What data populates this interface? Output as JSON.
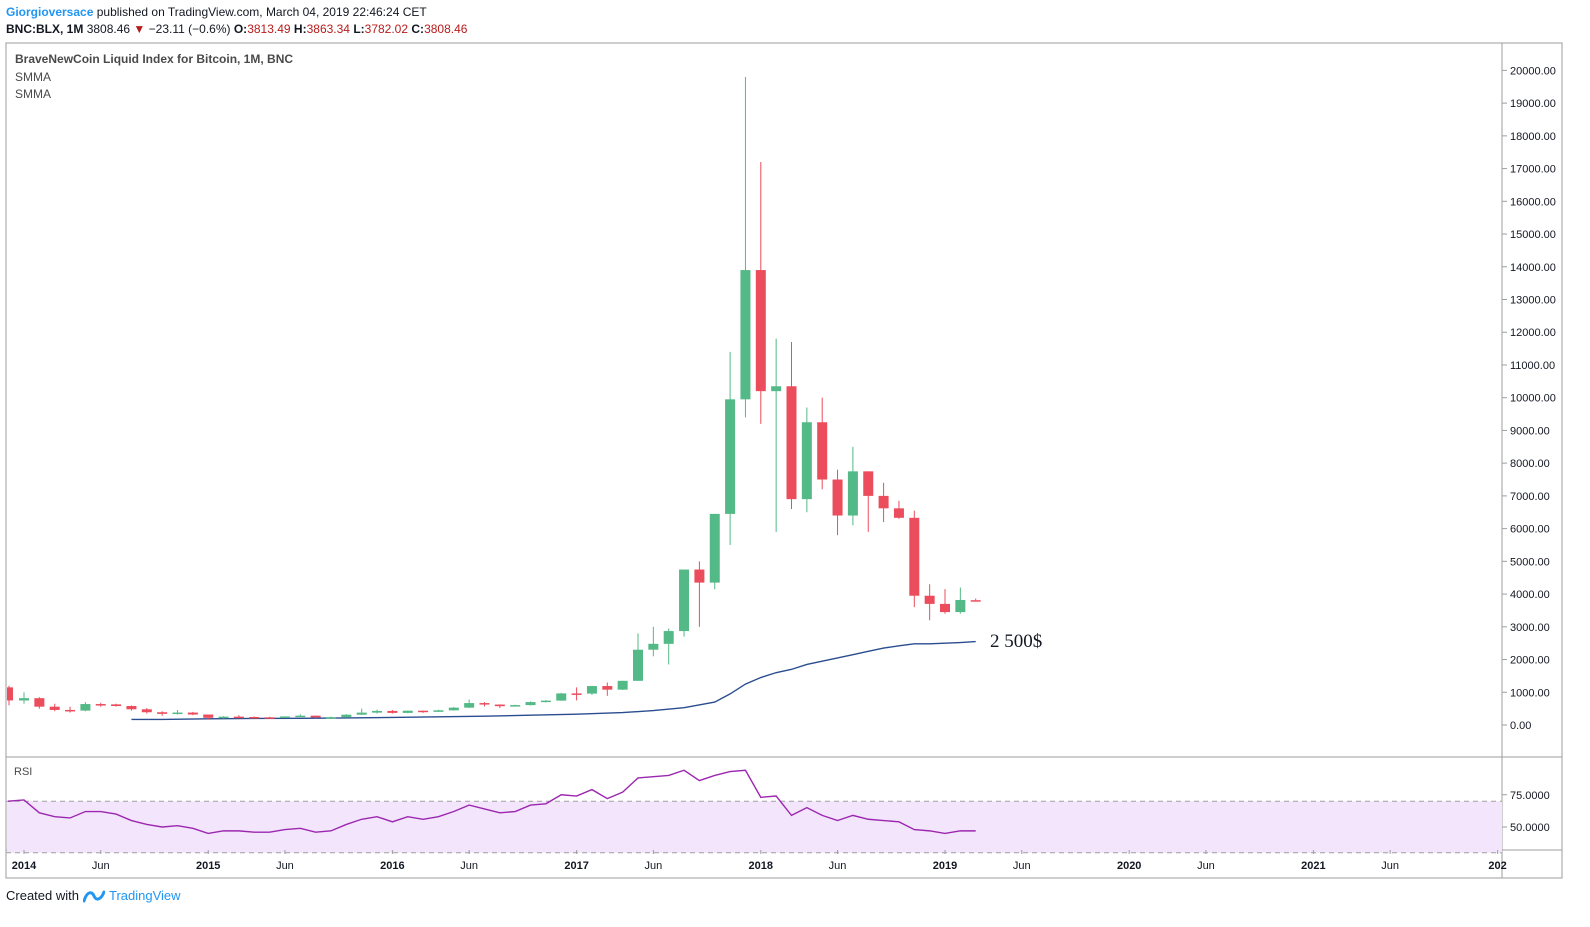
{
  "header": {
    "author": "Giorgioversace",
    "published": "published on TradingView.com, March 04, 2019 22:46:24 CET",
    "symbol": "BNC:BLX, 1M",
    "last": "3808.46",
    "change": "−23.11 (−0.6%)",
    "o_label": "O:",
    "o_value": "3813.49",
    "h_label": "H:",
    "h_value": "3863.34",
    "l_label": "L:",
    "l_value": "3782.02",
    "c_label": "C:",
    "c_value": "3808.46"
  },
  "legend": {
    "title": "BraveNewCoin Liquid Index for Bitcoin, 1M, BNC",
    "ind1": "SMMA",
    "ind2": "SMMA",
    "rsi": "RSI"
  },
  "annotation": "2 500$",
  "footer": {
    "created": "Created with",
    "brand": "TradingView"
  },
  "colors": {
    "up": "#53b987",
    "down": "#eb4d5c",
    "smma": "#2a4d8f",
    "rsi": "#9c27b0",
    "rsi_band": "#f3e5fc",
    "author": "#2196f3"
  },
  "chart_data": [
    {
      "type": "candlestick",
      "interval": "1M",
      "ylim": [
        -1000,
        20500
      ],
      "y_ticks": [
        0,
        1000,
        2000,
        3000,
        4000,
        5000,
        6000,
        7000,
        8000,
        9000,
        10000,
        11000,
        12000,
        13000,
        14000,
        15000,
        16000,
        17000,
        18000,
        19000,
        20000
      ],
      "y_tick_labels": [
        "0.00",
        "1000.00",
        "2000.00",
        "3000.00",
        "4000.00",
        "5000.00",
        "6000.00",
        "7000.00",
        "8000.00",
        "9000.00",
        "10000.00",
        "11000.00",
        "12000.00",
        "13000.00",
        "14000.00",
        "15000.00",
        "16000.00",
        "17000.00",
        "18000.00",
        "19000.00",
        "20000.00"
      ],
      "x_ticks": [
        {
          "m": 0,
          "label": "2014",
          "bold": true
        },
        {
          "m": 5,
          "label": "Jun"
        },
        {
          "m": 12,
          "label": "2015",
          "bold": true
        },
        {
          "m": 17,
          "label": "Jun"
        },
        {
          "m": 24,
          "label": "2016",
          "bold": true
        },
        {
          "m": 29,
          "label": "Jun"
        },
        {
          "m": 36,
          "label": "2017",
          "bold": true
        },
        {
          "m": 41,
          "label": "Jun"
        },
        {
          "m": 48,
          "label": "2018",
          "bold": true
        },
        {
          "m": 53,
          "label": "Jun"
        },
        {
          "m": 60,
          "label": "2019",
          "bold": true
        },
        {
          "m": 65,
          "label": "Jun"
        },
        {
          "m": 72,
          "label": "2020",
          "bold": true
        },
        {
          "m": 77,
          "label": "Jun"
        },
        {
          "m": 84,
          "label": "2021",
          "bold": true
        },
        {
          "m": 89,
          "label": "Jun"
        },
        {
          "m": 96,
          "label": "202",
          "bold": true
        }
      ],
      "candles": [
        {
          "m": -1,
          "o": 1150,
          "h": 1200,
          "l": 600,
          "c": 750
        },
        {
          "m": 0,
          "o": 750,
          "h": 1000,
          "l": 650,
          "c": 820
        },
        {
          "m": 1,
          "o": 820,
          "h": 850,
          "l": 500,
          "c": 560
        },
        {
          "m": 2,
          "o": 560,
          "h": 650,
          "l": 420,
          "c": 460
        },
        {
          "m": 3,
          "o": 460,
          "h": 560,
          "l": 380,
          "c": 440
        },
        {
          "m": 4,
          "o": 440,
          "h": 700,
          "l": 420,
          "c": 640
        },
        {
          "m": 5,
          "o": 640,
          "h": 680,
          "l": 560,
          "c": 630
        },
        {
          "m": 6,
          "o": 630,
          "h": 650,
          "l": 560,
          "c": 580
        },
        {
          "m": 7,
          "o": 580,
          "h": 600,
          "l": 440,
          "c": 480
        },
        {
          "m": 8,
          "o": 480,
          "h": 520,
          "l": 350,
          "c": 390
        },
        {
          "m": 9,
          "o": 390,
          "h": 420,
          "l": 280,
          "c": 340
        },
        {
          "m": 10,
          "o": 340,
          "h": 460,
          "l": 320,
          "c": 380
        },
        {
          "m": 11,
          "o": 380,
          "h": 400,
          "l": 300,
          "c": 320
        },
        {
          "m": 12,
          "o": 320,
          "h": 320,
          "l": 160,
          "c": 220
        },
        {
          "m": 13,
          "o": 220,
          "h": 270,
          "l": 200,
          "c": 255
        },
        {
          "m": 14,
          "o": 255,
          "h": 300,
          "l": 230,
          "c": 245
        },
        {
          "m": 15,
          "o": 245,
          "h": 260,
          "l": 220,
          "c": 235
        },
        {
          "m": 16,
          "o": 235,
          "h": 250,
          "l": 225,
          "c": 230
        },
        {
          "m": 17,
          "o": 230,
          "h": 265,
          "l": 220,
          "c": 262
        },
        {
          "m": 18,
          "o": 262,
          "h": 330,
          "l": 250,
          "c": 285
        },
        {
          "m": 19,
          "o": 285,
          "h": 290,
          "l": 200,
          "c": 230
        },
        {
          "m": 20,
          "o": 230,
          "h": 260,
          "l": 225,
          "c": 237
        },
        {
          "m": 21,
          "o": 237,
          "h": 330,
          "l": 235,
          "c": 315
        },
        {
          "m": 22,
          "o": 315,
          "h": 500,
          "l": 310,
          "c": 378
        },
        {
          "m": 23,
          "o": 378,
          "h": 470,
          "l": 350,
          "c": 430
        },
        {
          "m": 24,
          "o": 430,
          "h": 460,
          "l": 350,
          "c": 370
        },
        {
          "m": 25,
          "o": 370,
          "h": 440,
          "l": 360,
          "c": 437
        },
        {
          "m": 26,
          "o": 437,
          "h": 440,
          "l": 370,
          "c": 415
        },
        {
          "m": 27,
          "o": 415,
          "h": 465,
          "l": 410,
          "c": 448
        },
        {
          "m": 28,
          "o": 448,
          "h": 550,
          "l": 440,
          "c": 530
        },
        {
          "m": 29,
          "o": 530,
          "h": 780,
          "l": 520,
          "c": 670
        },
        {
          "m": 30,
          "o": 670,
          "h": 700,
          "l": 570,
          "c": 625
        },
        {
          "m": 31,
          "o": 625,
          "h": 630,
          "l": 520,
          "c": 575
        },
        {
          "m": 32,
          "o": 575,
          "h": 620,
          "l": 570,
          "c": 608
        },
        {
          "m": 33,
          "o": 608,
          "h": 720,
          "l": 600,
          "c": 700
        },
        {
          "m": 34,
          "o": 700,
          "h": 760,
          "l": 690,
          "c": 745
        },
        {
          "m": 35,
          "o": 745,
          "h": 980,
          "l": 740,
          "c": 965
        },
        {
          "m": 36,
          "o": 965,
          "h": 1150,
          "l": 750,
          "c": 960
        },
        {
          "m": 37,
          "o": 960,
          "h": 1200,
          "l": 920,
          "c": 1190
        },
        {
          "m": 38,
          "o": 1190,
          "h": 1300,
          "l": 890,
          "c": 1080
        },
        {
          "m": 39,
          "o": 1080,
          "h": 1350,
          "l": 1070,
          "c": 1350
        },
        {
          "m": 40,
          "o": 1350,
          "h": 2800,
          "l": 1350,
          "c": 2300
        },
        {
          "m": 41,
          "o": 2300,
          "h": 3000,
          "l": 2100,
          "c": 2480
        },
        {
          "m": 42,
          "o": 2480,
          "h": 2950,
          "l": 1850,
          "c": 2870
        },
        {
          "m": 43,
          "o": 2870,
          "h": 4750,
          "l": 2700,
          "c": 4750
        },
        {
          "m": 44,
          "o": 4750,
          "h": 5000,
          "l": 3000,
          "c": 4350
        },
        {
          "m": 45,
          "o": 4350,
          "h": 6450,
          "l": 4150,
          "c": 6450
        },
        {
          "m": 46,
          "o": 6450,
          "h": 11400,
          "l": 5500,
          "c": 9950
        },
        {
          "m": 47,
          "o": 9950,
          "h": 19800,
          "l": 9400,
          "c": 13900
        },
        {
          "m": 48,
          "o": 13900,
          "h": 17200,
          "l": 9200,
          "c": 10200
        },
        {
          "m": 49,
          "o": 10200,
          "h": 11800,
          "l": 5900,
          "c": 10350
        },
        {
          "m": 50,
          "o": 10350,
          "h": 11700,
          "l": 6600,
          "c": 6900
        },
        {
          "m": 51,
          "o": 6900,
          "h": 9700,
          "l": 6500,
          "c": 9250
        },
        {
          "m": 52,
          "o": 9250,
          "h": 10000,
          "l": 7200,
          "c": 7500
        },
        {
          "m": 53,
          "o": 7500,
          "h": 7800,
          "l": 5800,
          "c": 6400
        },
        {
          "m": 54,
          "o": 6400,
          "h": 8500,
          "l": 6100,
          "c": 7750
        },
        {
          "m": 55,
          "o": 7750,
          "h": 7750,
          "l": 5900,
          "c": 7000
        },
        {
          "m": 56,
          "o": 7000,
          "h": 7400,
          "l": 6200,
          "c": 6620
        },
        {
          "m": 57,
          "o": 6620,
          "h": 6850,
          "l": 6300,
          "c": 6330
        },
        {
          "m": 58,
          "o": 6330,
          "h": 6550,
          "l": 3600,
          "c": 3950
        },
        {
          "m": 59,
          "o": 3950,
          "h": 4300,
          "l": 3200,
          "c": 3700
        },
        {
          "m": 60,
          "o": 3700,
          "h": 4150,
          "l": 3400,
          "c": 3450
        },
        {
          "m": 61,
          "o": 3450,
          "h": 4200,
          "l": 3400,
          "c": 3820
        },
        {
          "m": 62,
          "o": 3813.49,
          "h": 3863.34,
          "l": 3782.02,
          "c": 3808.46
        }
      ],
      "smma": [
        {
          "m": 7,
          "v": 170
        },
        {
          "m": 9,
          "v": 170
        },
        {
          "m": 12,
          "v": 190
        },
        {
          "m": 15,
          "v": 200
        },
        {
          "m": 18,
          "v": 205
        },
        {
          "m": 21,
          "v": 215
        },
        {
          "m": 24,
          "v": 230
        },
        {
          "m": 27,
          "v": 250
        },
        {
          "m": 30,
          "v": 270
        },
        {
          "m": 33,
          "v": 300
        },
        {
          "m": 36,
          "v": 330
        },
        {
          "m": 39,
          "v": 380
        },
        {
          "m": 41,
          "v": 440
        },
        {
          "m": 43,
          "v": 530
        },
        {
          "m": 45,
          "v": 700
        },
        {
          "m": 46,
          "v": 950
        },
        {
          "m": 47,
          "v": 1250
        },
        {
          "m": 48,
          "v": 1450
        },
        {
          "m": 49,
          "v": 1600
        },
        {
          "m": 50,
          "v": 1700
        },
        {
          "m": 51,
          "v": 1850
        },
        {
          "m": 52,
          "v": 1950
        },
        {
          "m": 53,
          "v": 2050
        },
        {
          "m": 54,
          "v": 2150
        },
        {
          "m": 55,
          "v": 2250
        },
        {
          "m": 56,
          "v": 2350
        },
        {
          "m": 57,
          "v": 2420
        },
        {
          "m": 58,
          "v": 2480
        },
        {
          "m": 59,
          "v": 2480
        },
        {
          "m": 60,
          "v": 2500
        },
        {
          "m": 61,
          "v": 2520
        },
        {
          "m": 62,
          "v": 2550
        }
      ]
    },
    {
      "type": "line",
      "name": "RSI",
      "ylim": [
        30,
        100
      ],
      "y_ticks": [
        50,
        75
      ],
      "y_tick_labels": [
        "50.0000",
        "75.0000"
      ],
      "band": [
        30,
        70
      ],
      "series": [
        {
          "m": -1,
          "v": 70
        },
        {
          "m": 0,
          "v": 71
        },
        {
          "m": 1,
          "v": 61
        },
        {
          "m": 2,
          "v": 58
        },
        {
          "m": 3,
          "v": 57
        },
        {
          "m": 4,
          "v": 62
        },
        {
          "m": 5,
          "v": 62
        },
        {
          "m": 6,
          "v": 60
        },
        {
          "m": 7,
          "v": 55
        },
        {
          "m": 8,
          "v": 52
        },
        {
          "m": 9,
          "v": 50
        },
        {
          "m": 10,
          "v": 51
        },
        {
          "m": 11,
          "v": 49
        },
        {
          "m": 12,
          "v": 45
        },
        {
          "m": 13,
          "v": 47
        },
        {
          "m": 14,
          "v": 47
        },
        {
          "m": 15,
          "v": 46
        },
        {
          "m": 16,
          "v": 46
        },
        {
          "m": 17,
          "v": 48
        },
        {
          "m": 18,
          "v": 49
        },
        {
          "m": 19,
          "v": 46
        },
        {
          "m": 20,
          "v": 47
        },
        {
          "m": 21,
          "v": 52
        },
        {
          "m": 22,
          "v": 56
        },
        {
          "m": 23,
          "v": 58
        },
        {
          "m": 24,
          "v": 54
        },
        {
          "m": 25,
          "v": 58
        },
        {
          "m": 26,
          "v": 56
        },
        {
          "m": 27,
          "v": 58
        },
        {
          "m": 28,
          "v": 62
        },
        {
          "m": 29,
          "v": 67
        },
        {
          "m": 30,
          "v": 64
        },
        {
          "m": 31,
          "v": 61
        },
        {
          "m": 32,
          "v": 62
        },
        {
          "m": 33,
          "v": 67
        },
        {
          "m": 34,
          "v": 68
        },
        {
          "m": 35,
          "v": 75
        },
        {
          "m": 36,
          "v": 74
        },
        {
          "m": 37,
          "v": 79
        },
        {
          "m": 38,
          "v": 72
        },
        {
          "m": 39,
          "v": 77
        },
        {
          "m": 40,
          "v": 88
        },
        {
          "m": 41,
          "v": 89
        },
        {
          "m": 42,
          "v": 90
        },
        {
          "m": 43,
          "v": 94
        },
        {
          "m": 44,
          "v": 86
        },
        {
          "m": 45,
          "v": 90
        },
        {
          "m": 46,
          "v": 93
        },
        {
          "m": 47,
          "v": 94
        },
        {
          "m": 48,
          "v": 73
        },
        {
          "m": 49,
          "v": 74
        },
        {
          "m": 50,
          "v": 59
        },
        {
          "m": 51,
          "v": 65
        },
        {
          "m": 52,
          "v": 59
        },
        {
          "m": 53,
          "v": 55
        },
        {
          "m": 54,
          "v": 59
        },
        {
          "m": 55,
          "v": 56
        },
        {
          "m": 56,
          "v": 55
        },
        {
          "m": 57,
          "v": 54
        },
        {
          "m": 58,
          "v": 48
        },
        {
          "m": 59,
          "v": 47
        },
        {
          "m": 60,
          "v": 45
        },
        {
          "m": 61,
          "v": 47
        },
        {
          "m": 62,
          "v": 47
        }
      ]
    }
  ]
}
